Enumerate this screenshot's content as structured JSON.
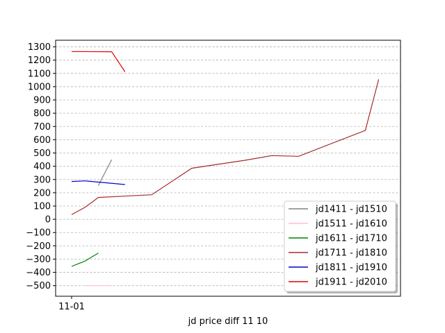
{
  "chart_data": {
    "type": "line",
    "xlabel": "jd price diff 11 10",
    "ylabel": "",
    "x_tick_labels": [
      "11-01"
    ],
    "ylim": [
      -580,
      1350
    ],
    "yticks": [
      -500,
      -400,
      -300,
      -200,
      -100,
      0,
      100,
      200,
      300,
      400,
      500,
      600,
      700,
      800,
      900,
      1000,
      1100,
      1200,
      1300
    ],
    "grid": "horizontal dashed",
    "legend_position": "lower-right",
    "series": [
      {
        "name": "jd1411 - jd1510",
        "color": "#808080",
        "x": [
          2,
          3
        ],
        "y": [
          255,
          450
        ]
      },
      {
        "name": "jd1511 - jd1610",
        "color": "#ffc0cb",
        "x": [
          1,
          2,
          3
        ],
        "y": [
          -500,
          -500,
          -500
        ]
      },
      {
        "name": "jd1611 - jd1710",
        "color": "#008000",
        "x": [
          0,
          1,
          2
        ],
        "y": [
          -355,
          -315,
          -255
        ]
      },
      {
        "name": "jd1711 - jd1810",
        "color": "#a52a2a",
        "x": [
          0,
          1,
          2,
          4,
          6,
          9,
          13,
          15,
          17,
          22,
          23
        ],
        "y": [
          35,
          90,
          165,
          175,
          185,
          385,
          445,
          480,
          475,
          670,
          1055
        ]
      },
      {
        "name": "jd1811 - jd1910",
        "color": "#0000cd",
        "x": [
          0,
          1,
          4
        ],
        "y": [
          285,
          290,
          262
        ]
      },
      {
        "name": "jd1911 - jd2010",
        "color": "#dd0000",
        "x": [
          0,
          3,
          4
        ],
        "y": [
          1265,
          1263,
          1112
        ]
      }
    ]
  }
}
